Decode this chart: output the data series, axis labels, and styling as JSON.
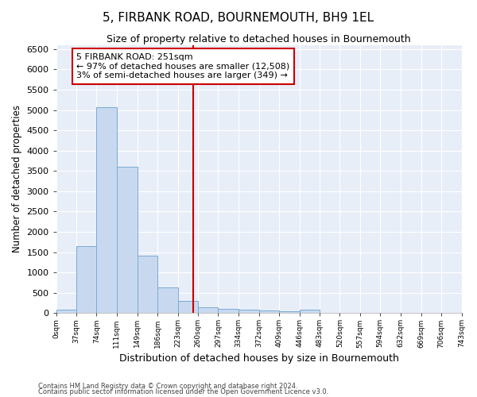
{
  "title": "5, FIRBANK ROAD, BOURNEMOUTH, BH9 1EL",
  "subtitle": "Size of property relative to detached houses in Bournemouth",
  "xlabel": "Distribution of detached houses by size in Bournemouth",
  "ylabel": "Number of detached properties",
  "footnote1": "Contains HM Land Registry data © Crown copyright and database right 2024.",
  "footnote2": "Contains public sector information licensed under the Open Government Licence v3.0.",
  "bar_edges": [
    0,
    37,
    74,
    111,
    149,
    186,
    223,
    260,
    297,
    334,
    372,
    409,
    446,
    483,
    520,
    557,
    594,
    632,
    669,
    706,
    743
  ],
  "bar_heights": [
    80,
    1650,
    5060,
    3600,
    1420,
    630,
    300,
    150,
    110,
    80,
    60,
    40,
    80,
    0,
    0,
    0,
    0,
    0,
    0,
    0
  ],
  "bar_color": "#c8d9ef",
  "bar_edge_color": "#7aaad4",
  "vline_x": 251,
  "vline_color": "#cc0000",
  "annotation_title": "5 FIRBANK ROAD: 251sqm",
  "annotation_line1": "← 97% of detached houses are smaller (12,508)",
  "annotation_line2": "3% of semi-detached houses are larger (349) →",
  "annotation_box_color": "#ffffff",
  "annotation_box_edge": "#cc0000",
  "ylim": [
    0,
    6600
  ],
  "xlim": [
    0,
    743
  ],
  "background_color": "#e8eef8",
  "grid_color": "#ffffff",
  "yticks": [
    0,
    500,
    1000,
    1500,
    2000,
    2500,
    3000,
    3500,
    4000,
    4500,
    5000,
    5500,
    6000,
    6500
  ],
  "tick_labels": [
    "0sqm",
    "37sqm",
    "74sqm",
    "111sqm",
    "149sqm",
    "186sqm",
    "223sqm",
    "260sqm",
    "297sqm",
    "334sqm",
    "372sqm",
    "409sqm",
    "446sqm",
    "483sqm",
    "520sqm",
    "557sqm",
    "594sqm",
    "632sqm",
    "669sqm",
    "706sqm",
    "743sqm"
  ]
}
